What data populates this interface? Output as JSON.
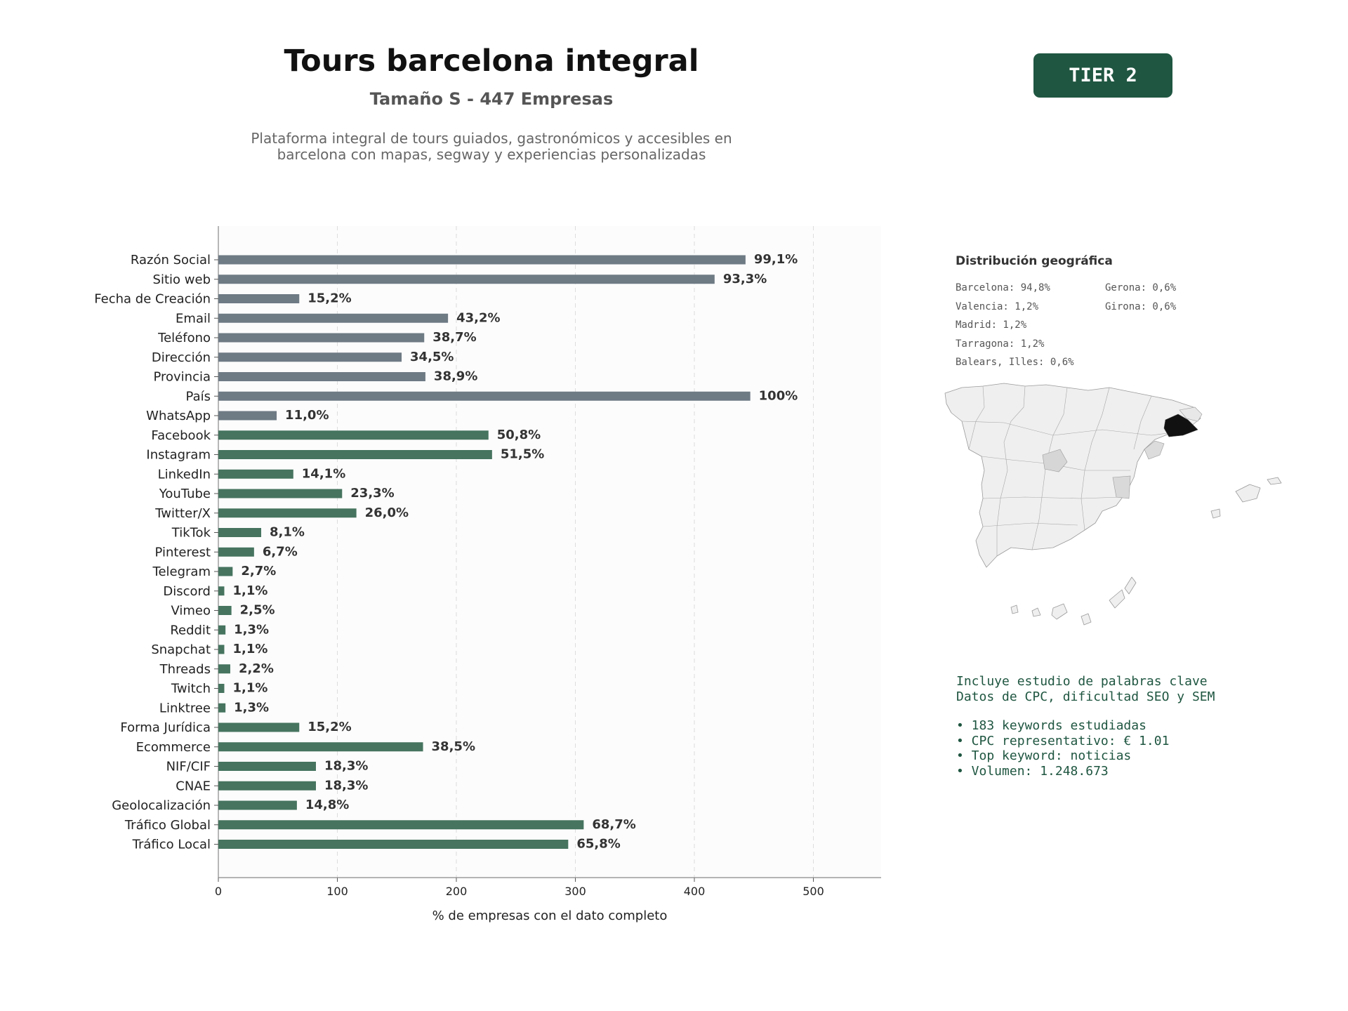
{
  "header": {
    "title": "Tours barcelona integral",
    "subtitle": "Tamaño S - 447 Empresas",
    "description_line1": "Plataforma integral de tours guiados, gastronómicos y accesibles en",
    "description_line2": "barcelona con mapas, segway y experiencias personalizadas",
    "tier_badge": "TIER 2"
  },
  "geo": {
    "title": "Distribución geográfica",
    "col1": [
      "Barcelona: 94,8%",
      "Valencia: 1,2%",
      "Madrid: 1,2%",
      "Tarragona: 1,2%",
      "Balears, Illes: 0,6%"
    ],
    "col2": [
      "Gerona: 0,6%",
      "Girona: 0,6%"
    ]
  },
  "keywords": {
    "line1": "Incluye estudio de palabras clave",
    "line2": "Datos de CPC, dificultad SEO y SEM",
    "bullets": [
      "• 183 keywords estudiadas",
      "• CPC representativo: € 1.01",
      "• Top keyword: noticias",
      "• Volumen: 1.248.673"
    ]
  },
  "colors": {
    "grey_bar": "#6e7a84",
    "green_bar": "#46745f",
    "brand": "#1f5641",
    "highlight_region": "#111111"
  },
  "chart_data": {
    "type": "bar",
    "orientation": "horizontal",
    "title": "",
    "xlabel": "% de empresas con el dato completo",
    "ylabel": "",
    "xlim": [
      0,
      560
    ],
    "xticks": [
      0,
      100,
      200,
      300,
      400,
      500
    ],
    "grid": "vertical dashed",
    "categories": [
      "Razón Social",
      "Sitio web",
      "Fecha de Creación",
      "Email",
      "Teléfono",
      "Dirección",
      "Provincia",
      "País",
      "WhatsApp",
      "Facebook",
      "Instagram",
      "LinkedIn",
      "YouTube",
      "Twitter/X",
      "TikTok",
      "Pinterest",
      "Telegram",
      "Discord",
      "Vimeo",
      "Reddit",
      "Snapchat",
      "Threads",
      "Twitch",
      "Linktree",
      "Forma Jurídica",
      "Ecommerce",
      "NIF/CIF",
      "CNAE",
      "Geolocalización",
      "Tráfico Global",
      "Tráfico Local"
    ],
    "values": [
      443,
      417,
      68,
      193,
      173,
      154,
      174,
      447,
      49,
      227,
      230,
      63,
      104,
      116,
      36,
      30,
      12,
      5,
      11,
      6,
      5,
      10,
      5,
      6,
      68,
      172,
      82,
      82,
      66,
      307,
      294
    ],
    "labels": [
      "99,1%",
      "93,3%",
      "15,2%",
      "43,2%",
      "38,7%",
      "34,5%",
      "38,9%",
      "100%",
      "11,0%",
      "50,8%",
      "51,5%",
      "14,1%",
      "23,3%",
      "26,0%",
      "8,1%",
      "6,7%",
      "2,7%",
      "1,1%",
      "2,5%",
      "1,3%",
      "1,1%",
      "2,2%",
      "1,1%",
      "1,3%",
      "15,2%",
      "38,5%",
      "18,3%",
      "18,3%",
      "14,8%",
      "68,7%",
      "65,8%"
    ],
    "bar_group": [
      "grey",
      "grey",
      "grey",
      "grey",
      "grey",
      "grey",
      "grey",
      "grey",
      "grey",
      "green",
      "green",
      "green",
      "green",
      "green",
      "green",
      "green",
      "green",
      "green",
      "green",
      "green",
      "green",
      "green",
      "green",
      "green",
      "green",
      "green",
      "green",
      "green",
      "green",
      "green",
      "green"
    ]
  }
}
